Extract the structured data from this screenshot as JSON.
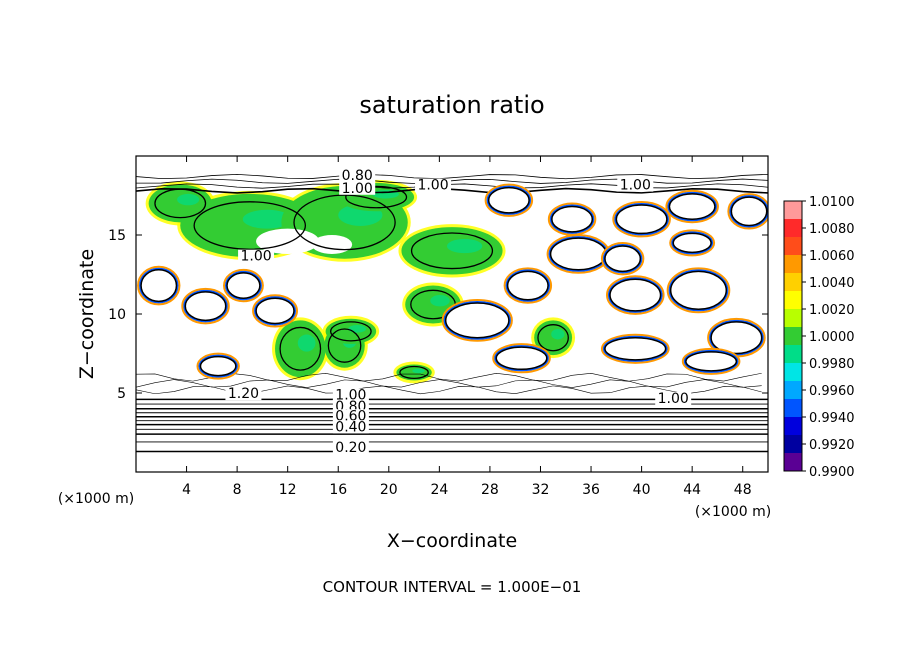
{
  "chart_data": {
    "type": "heatmap",
    "title": "saturation ratio",
    "xlabel": "X−coordinate",
    "ylabel": "Z−coordinate",
    "x_unit_left": "(×1000 m)",
    "x_unit_right": "(×1000 m)",
    "xlim": [
      0,
      50
    ],
    "ylim": [
      0,
      20
    ],
    "x_ticks": [
      4,
      8,
      12,
      16,
      20,
      24,
      28,
      32,
      36,
      40,
      44,
      48
    ],
    "y_ticks": [
      5,
      10,
      15
    ],
    "footer": "CONTOUR INTERVAL = 1.000E−01",
    "colorbar": {
      "labels": [
        "1.0100",
        "1.0080",
        "1.0060",
        "1.0040",
        "1.0020",
        "1.0000",
        "0.9980",
        "0.9960",
        "0.9940",
        "0.9920",
        "0.9900"
      ],
      "colors": [
        "#ff9a9a",
        "#ff2a2a",
        "#ff4d1a",
        "#ff9900",
        "#ffd000",
        "#ffff00",
        "#b8ff00",
        "#33cc33",
        "#00dd88",
        "#00e5e5",
        "#00a8ff",
        "#0055ff",
        "#0000dd",
        "#0000a0",
        "#5a0094"
      ]
    },
    "contour_labels": [
      {
        "text": "0.80",
        "x": 17.5,
        "z": 18.6
      },
      {
        "text": "1.00",
        "x": 17.5,
        "z": 17.8
      },
      {
        "text": "1.00",
        "x": 23.5,
        "z": 18.0
      },
      {
        "text": "1.00",
        "x": 39.5,
        "z": 18.0
      },
      {
        "text": "1.00",
        "x": 9.5,
        "z": 13.5
      },
      {
        "text": "1.20",
        "x": 8.5,
        "z": 4.8
      },
      {
        "text": "1.00",
        "x": 17,
        "z": 4.7
      },
      {
        "text": "0.80",
        "x": 17,
        "z": 4.0
      },
      {
        "text": "0.60",
        "x": 17,
        "z": 3.4
      },
      {
        "text": "0.40",
        "x": 17,
        "z": 2.7
      },
      {
        "text": "0.20",
        "x": 17,
        "z": 1.4
      },
      {
        "text": "1.00",
        "x": 42.5,
        "z": 4.5
      }
    ],
    "green_regions": [
      {
        "x": 3.5,
        "z": 17.0,
        "rx": 2.5,
        "rz": 1.2
      },
      {
        "x": 9.0,
        "z": 15.6,
        "rx": 5.5,
        "rz": 2.0
      },
      {
        "x": 16.5,
        "z": 15.8,
        "rx": 5.0,
        "rz": 2.3
      },
      {
        "x": 19.0,
        "z": 17.4,
        "rx": 3.0,
        "rz": 0.9
      },
      {
        "x": 25.0,
        "z": 14.0,
        "rx": 4.0,
        "rz": 1.5
      },
      {
        "x": 23.5,
        "z": 10.6,
        "rx": 2.2,
        "rz": 1.2
      },
      {
        "x": 13.0,
        "z": 7.8,
        "rx": 2.0,
        "rz": 1.8
      },
      {
        "x": 16.5,
        "z": 8.0,
        "rx": 1.6,
        "rz": 1.4
      },
      {
        "x": 22.0,
        "z": 6.3,
        "rx": 1.4,
        "rz": 0.5
      },
      {
        "x": 33.0,
        "z": 8.5,
        "rx": 1.5,
        "rz": 1.1
      },
      {
        "x": 17.0,
        "z": 8.9,
        "rx": 2.0,
        "rz": 0.8
      }
    ],
    "white_regions": [
      {
        "x": 12.0,
        "z": 14.6,
        "rx": 2.5,
        "rz": 0.8
      },
      {
        "x": 15.5,
        "z": 14.4,
        "rx": 1.6,
        "rz": 0.6
      },
      {
        "x": 18.5,
        "z": 12.2,
        "rx": 2.8,
        "rz": 1.1
      },
      {
        "x": 13.0,
        "z": 12.3,
        "rx": 2.0,
        "rz": 0.7
      }
    ],
    "dry_cells": [
      {
        "x": 1.8,
        "z": 11.8,
        "rx": 1.4,
        "rz": 1.0
      },
      {
        "x": 5.5,
        "z": 10.5,
        "rx": 1.6,
        "rz": 0.9
      },
      {
        "x": 8.5,
        "z": 11.8,
        "rx": 1.3,
        "rz": 0.8
      },
      {
        "x": 11.0,
        "z": 10.2,
        "rx": 1.5,
        "rz": 0.8
      },
      {
        "x": 27.0,
        "z": 9.6,
        "rx": 2.5,
        "rz": 1.1
      },
      {
        "x": 31.0,
        "z": 11.8,
        "rx": 1.6,
        "rz": 0.9
      },
      {
        "x": 35.0,
        "z": 13.8,
        "rx": 2.2,
        "rz": 1.0
      },
      {
        "x": 39.5,
        "z": 11.2,
        "rx": 2.0,
        "rz": 1.0
      },
      {
        "x": 44.5,
        "z": 11.5,
        "rx": 2.2,
        "rz": 1.2
      },
      {
        "x": 47.5,
        "z": 8.5,
        "rx": 2.0,
        "rz": 1.0
      },
      {
        "x": 40.0,
        "z": 16.0,
        "rx": 2.0,
        "rz": 0.9
      },
      {
        "x": 44.0,
        "z": 16.8,
        "rx": 1.8,
        "rz": 0.8
      },
      {
        "x": 48.5,
        "z": 16.5,
        "rx": 1.4,
        "rz": 0.9
      },
      {
        "x": 29.5,
        "z": 17.2,
        "rx": 1.6,
        "rz": 0.8
      },
      {
        "x": 34.5,
        "z": 16.0,
        "rx": 1.6,
        "rz": 0.8
      },
      {
        "x": 38.5,
        "z": 13.5,
        "rx": 1.4,
        "rz": 0.8
      },
      {
        "x": 6.5,
        "z": 6.7,
        "rx": 1.4,
        "rz": 0.6
      },
      {
        "x": 30.5,
        "z": 7.2,
        "rx": 2.0,
        "rz": 0.7
      },
      {
        "x": 39.5,
        "z": 7.8,
        "rx": 2.4,
        "rz": 0.7
      },
      {
        "x": 45.5,
        "z": 7.0,
        "rx": 2.0,
        "rz": 0.6
      },
      {
        "x": 44.0,
        "z": 14.5,
        "rx": 1.5,
        "rz": 0.6
      }
    ]
  }
}
